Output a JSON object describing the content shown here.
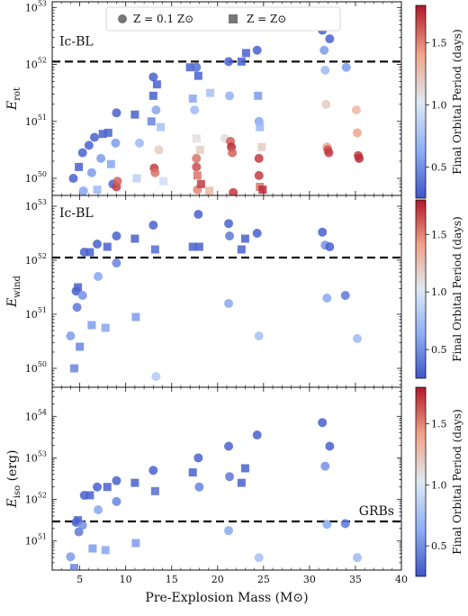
{
  "chart_data": {
    "type": "scatter",
    "xlabel": "Pre-Explosion Mass (M⊙)",
    "xlim": [
      2,
      40
    ],
    "x_ticks": [
      5,
      10,
      15,
      20,
      25,
      30,
      35,
      40
    ],
    "colors": {
      "low_period": "#3f55c8",
      "mid_period": "#dfe9f3",
      "high_period": "#b2182b",
      "dashed_line": "#111111"
    },
    "legend": {
      "placement": "top-center",
      "items": [
        {
          "label": "Z = 0.1 Z⊙",
          "marker": "circle"
        },
        {
          "label": "Z = Z⊙",
          "marker": "square"
        }
      ]
    },
    "colorbar": {
      "label": "Final Orbital Period (days)",
      "range": [
        0.25,
        1.8
      ],
      "ticks": [
        "0.5",
        "1.0",
        "1.5"
      ],
      "tick_values": [
        0.5,
        1.0,
        1.5
      ]
    },
    "panels": [
      {
        "ylabel": "E_rot",
        "ylabel_main": "E",
        "ylabel_sub": "rot",
        "log_ylim": [
          49.7,
          53.1
        ],
        "y_ticks": [
          50,
          51,
          52,
          53
        ],
        "threshold": {
          "log_value": 52.05,
          "label": "Ic-BL",
          "label_position": "top-left"
        },
        "points": [
          {
            "x": 4.3,
            "y": 50.0,
            "p": 0.3,
            "m": "circle"
          },
          {
            "x": 4.9,
            "y": 50.2,
            "p": 0.3,
            "m": "square"
          },
          {
            "x": 5.3,
            "y": 50.45,
            "p": 0.3,
            "m": "circle"
          },
          {
            "x": 5.4,
            "y": 49.78,
            "p": 0.6,
            "m": "circle"
          },
          {
            "x": 6.0,
            "y": 50.58,
            "p": 0.3,
            "m": "circle"
          },
          {
            "x": 6.3,
            "y": 50.1,
            "p": 0.55,
            "m": "circle"
          },
          {
            "x": 6.6,
            "y": 50.72,
            "p": 0.3,
            "m": "circle"
          },
          {
            "x": 6.9,
            "y": 49.8,
            "p": 0.7,
            "m": "square"
          },
          {
            "x": 7.3,
            "y": 50.35,
            "p": 0.55,
            "m": "circle"
          },
          {
            "x": 7.5,
            "y": 50.78,
            "p": 0.3,
            "m": "square"
          },
          {
            "x": 8.1,
            "y": 50.8,
            "p": 0.3,
            "m": "square"
          },
          {
            "x": 8.4,
            "y": 50.25,
            "p": 0.6,
            "m": "square"
          },
          {
            "x": 8.6,
            "y": 49.9,
            "p": 0.3,
            "m": "circle"
          },
          {
            "x": 8.9,
            "y": 50.62,
            "p": 0.55,
            "m": "circle"
          },
          {
            "x": 9.0,
            "y": 51.15,
            "p": 0.3,
            "m": "circle"
          },
          {
            "x": 9.0,
            "y": 49.85,
            "p": 1.7,
            "m": "circle"
          },
          {
            "x": 9.1,
            "y": 49.95,
            "p": 1.6,
            "m": "circle"
          },
          {
            "x": 11.0,
            "y": 51.12,
            "p": 0.3,
            "m": "square"
          },
          {
            "x": 11.2,
            "y": 50.0,
            "p": 0.85,
            "m": "square"
          },
          {
            "x": 11.5,
            "y": 50.62,
            "p": 0.7,
            "m": "circle"
          },
          {
            "x": 12.8,
            "y": 51.0,
            "p": 0.45,
            "m": "square"
          },
          {
            "x": 13.0,
            "y": 51.45,
            "p": 0.3,
            "m": "square"
          },
          {
            "x": 13.0,
            "y": 51.78,
            "p": 0.3,
            "m": "circle"
          },
          {
            "x": 13.1,
            "y": 50.18,
            "p": 1.7,
            "m": "circle"
          },
          {
            "x": 13.2,
            "y": 50.1,
            "p": 1.55,
            "m": "circle"
          },
          {
            "x": 13.3,
            "y": 51.2,
            "p": 0.6,
            "m": "circle"
          },
          {
            "x": 13.4,
            "y": 51.65,
            "p": 0.3,
            "m": "square"
          },
          {
            "x": 13.6,
            "y": 50.5,
            "p": 1.2,
            "m": "circle"
          },
          {
            "x": 13.8,
            "y": 50.9,
            "p": 0.75,
            "m": "square"
          },
          {
            "x": 14.1,
            "y": 49.95,
            "p": 0.95,
            "m": "square"
          },
          {
            "x": 17.0,
            "y": 51.95,
            "p": 0.3,
            "m": "square"
          },
          {
            "x": 17.3,
            "y": 51.4,
            "p": 0.6,
            "m": "square"
          },
          {
            "x": 17.5,
            "y": 51.2,
            "p": 0.7,
            "m": "circle"
          },
          {
            "x": 17.7,
            "y": 51.95,
            "p": 0.35,
            "m": "circle"
          },
          {
            "x": 17.7,
            "y": 50.7,
            "p": 1.1,
            "m": "square"
          },
          {
            "x": 17.7,
            "y": 50.35,
            "p": 1.55,
            "m": "circle"
          },
          {
            "x": 17.7,
            "y": 50.2,
            "p": 1.65,
            "m": "circle"
          },
          {
            "x": 17.8,
            "y": 50.05,
            "p": 1.55,
            "m": "square"
          },
          {
            "x": 17.8,
            "y": 49.8,
            "p": 1.5,
            "m": "circle"
          },
          {
            "x": 17.9,
            "y": 51.8,
            "p": 0.3,
            "m": "square"
          },
          {
            "x": 18.1,
            "y": 50.5,
            "p": 1.2,
            "m": "square"
          },
          {
            "x": 18.2,
            "y": 49.9,
            "p": 1.7,
            "m": "square"
          },
          {
            "x": 19.1,
            "y": 49.78,
            "p": 1.3,
            "m": "square"
          },
          {
            "x": 19.2,
            "y": 51.5,
            "p": 0.75,
            "m": "square"
          },
          {
            "x": 20.8,
            "y": 50.7,
            "p": 1.1,
            "m": "circle"
          },
          {
            "x": 21.2,
            "y": 52.05,
            "p": 0.3,
            "m": "circle"
          },
          {
            "x": 21.3,
            "y": 51.45,
            "p": 0.65,
            "m": "circle"
          },
          {
            "x": 21.4,
            "y": 50.65,
            "p": 1.6,
            "m": "circle"
          },
          {
            "x": 21.5,
            "y": 50.55,
            "p": 1.75,
            "m": "circle"
          },
          {
            "x": 21.6,
            "y": 50.45,
            "p": 1.6,
            "m": "circle"
          },
          {
            "x": 21.7,
            "y": 49.75,
            "p": 1.7,
            "m": "circle"
          },
          {
            "x": 22.6,
            "y": 52.05,
            "p": 0.3,
            "m": "square"
          },
          {
            "x": 23.1,
            "y": 52.2,
            "p": 0.3,
            "m": "square"
          },
          {
            "x": 24.3,
            "y": 52.25,
            "p": 0.3,
            "m": "circle"
          },
          {
            "x": 24.4,
            "y": 51.45,
            "p": 0.55,
            "m": "square"
          },
          {
            "x": 24.5,
            "y": 50.35,
            "p": 1.7,
            "m": "circle"
          },
          {
            "x": 24.5,
            "y": 50.05,
            "p": 1.7,
            "m": "circle"
          },
          {
            "x": 24.5,
            "y": 51.0,
            "p": 0.6,
            "m": "circle"
          },
          {
            "x": 24.6,
            "y": 49.85,
            "p": 1.55,
            "m": "square"
          },
          {
            "x": 24.6,
            "y": 50.9,
            "p": 0.7,
            "m": "square"
          },
          {
            "x": 24.8,
            "y": 50.55,
            "p": 1.2,
            "m": "square"
          },
          {
            "x": 24.9,
            "y": 49.8,
            "p": 1.75,
            "m": "square"
          },
          {
            "x": 31.4,
            "y": 52.6,
            "p": 0.3,
            "m": "circle"
          },
          {
            "x": 31.6,
            "y": 52.25,
            "p": 0.55,
            "m": "circle"
          },
          {
            "x": 31.7,
            "y": 51.9,
            "p": 0.7,
            "m": "circle"
          },
          {
            "x": 31.8,
            "y": 51.3,
            "p": 1.2,
            "m": "circle"
          },
          {
            "x": 31.9,
            "y": 50.55,
            "p": 1.4,
            "m": "circle"
          },
          {
            "x": 32.0,
            "y": 50.5,
            "p": 1.65,
            "m": "circle"
          },
          {
            "x": 32.1,
            "y": 50.45,
            "p": 1.7,
            "m": "circle"
          },
          {
            "x": 32.2,
            "y": 52.45,
            "p": 0.3,
            "m": "circle"
          },
          {
            "x": 34.0,
            "y": 51.95,
            "p": 0.55,
            "m": "circle"
          },
          {
            "x": 35.1,
            "y": 51.2,
            "p": 1.3,
            "m": "circle"
          },
          {
            "x": 35.2,
            "y": 50.8,
            "p": 1.4,
            "m": "circle"
          },
          {
            "x": 35.3,
            "y": 50.4,
            "p": 1.7,
            "m": "circle"
          },
          {
            "x": 35.4,
            "y": 50.35,
            "p": 1.75,
            "m": "circle"
          }
        ]
      },
      {
        "ylabel": "E_wind",
        "ylabel_main": "E",
        "ylabel_sub": "wind",
        "log_ylim": [
          49.65,
          53.2
        ],
        "y_ticks": [
          50,
          51,
          52,
          53
        ],
        "threshold": {
          "log_value": 52.05,
          "label": "Ic-BL",
          "label_position": "top-left"
        },
        "points": [
          {
            "x": 4.0,
            "y": 50.6,
            "p": 0.55,
            "m": "circle"
          },
          {
            "x": 4.4,
            "y": 50.0,
            "p": 0.45,
            "m": "square"
          },
          {
            "x": 4.6,
            "y": 51.43,
            "p": 0.3,
            "m": "circle"
          },
          {
            "x": 4.7,
            "y": 51.13,
            "p": 0.4,
            "m": "circle"
          },
          {
            "x": 4.8,
            "y": 51.5,
            "p": 0.3,
            "m": "square"
          },
          {
            "x": 5.0,
            "y": 50.4,
            "p": 0.45,
            "m": "square"
          },
          {
            "x": 5.3,
            "y": 51.35,
            "p": 0.5,
            "m": "circle"
          },
          {
            "x": 5.5,
            "y": 52.15,
            "p": 0.3,
            "m": "circle"
          },
          {
            "x": 6.1,
            "y": 52.15,
            "p": 0.3,
            "m": "square"
          },
          {
            "x": 6.3,
            "y": 50.8,
            "p": 0.55,
            "m": "square"
          },
          {
            "x": 6.9,
            "y": 52.3,
            "p": 0.3,
            "m": "circle"
          },
          {
            "x": 7.0,
            "y": 51.7,
            "p": 0.6,
            "m": "circle"
          },
          {
            "x": 7.8,
            "y": 50.75,
            "p": 0.6,
            "m": "square"
          },
          {
            "x": 8.0,
            "y": 52.25,
            "p": 0.3,
            "m": "square"
          },
          {
            "x": 9.0,
            "y": 52.45,
            "p": 0.3,
            "m": "circle"
          },
          {
            "x": 9.0,
            "y": 51.95,
            "p": 0.45,
            "m": "circle"
          },
          {
            "x": 11.0,
            "y": 52.4,
            "p": 0.3,
            "m": "square"
          },
          {
            "x": 11.1,
            "y": 50.95,
            "p": 0.55,
            "m": "square"
          },
          {
            "x": 13.0,
            "y": 52.65,
            "p": 0.3,
            "m": "circle"
          },
          {
            "x": 13.2,
            "y": 52.2,
            "p": 0.35,
            "m": "square"
          },
          {
            "x": 13.3,
            "y": 49.85,
            "p": 0.8,
            "m": "circle"
          },
          {
            "x": 17.3,
            "y": 52.25,
            "p": 0.3,
            "m": "square"
          },
          {
            "x": 17.9,
            "y": 52.85,
            "p": 0.3,
            "m": "circle"
          },
          {
            "x": 18.0,
            "y": 52.25,
            "p": 0.3,
            "m": "square"
          },
          {
            "x": 21.2,
            "y": 52.68,
            "p": 0.3,
            "m": "circle"
          },
          {
            "x": 21.3,
            "y": 52.45,
            "p": 0.4,
            "m": "circle"
          },
          {
            "x": 21.2,
            "y": 51.2,
            "p": 0.6,
            "m": "circle"
          },
          {
            "x": 22.6,
            "y": 52.2,
            "p": 0.3,
            "m": "square"
          },
          {
            "x": 23.0,
            "y": 52.4,
            "p": 0.3,
            "m": "square"
          },
          {
            "x": 24.3,
            "y": 52.5,
            "p": 0.3,
            "m": "circle"
          },
          {
            "x": 24.5,
            "y": 50.6,
            "p": 0.75,
            "m": "circle"
          },
          {
            "x": 31.4,
            "y": 52.52,
            "p": 0.3,
            "m": "circle"
          },
          {
            "x": 31.7,
            "y": 52.28,
            "p": 0.5,
            "m": "circle"
          },
          {
            "x": 32.2,
            "y": 52.25,
            "p": 0.3,
            "m": "circle"
          },
          {
            "x": 31.9,
            "y": 51.3,
            "p": 0.6,
            "m": "circle"
          },
          {
            "x": 33.9,
            "y": 51.35,
            "p": 0.4,
            "m": "circle"
          },
          {
            "x": 35.2,
            "y": 50.55,
            "p": 0.7,
            "m": "circle"
          }
        ]
      },
      {
        "ylabel": "E_iso (erg)",
        "ylabel_main": "E",
        "ylabel_sub": "iso",
        "ylabel_suffix": " (erg)",
        "log_ylim": [
          50.3,
          54.7
        ],
        "y_ticks": [
          51,
          52,
          53,
          54
        ],
        "threshold": {
          "log_value": 51.47,
          "label": "GRBs",
          "label_position": "bottom-right"
        },
        "points": [
          {
            "x": 4.0,
            "y": 50.62,
            "p": 0.55,
            "m": "circle"
          },
          {
            "x": 4.4,
            "y": 50.35,
            "p": 0.45,
            "m": "square"
          },
          {
            "x": 4.6,
            "y": 51.45,
            "p": 0.3,
            "m": "circle"
          },
          {
            "x": 4.8,
            "y": 51.5,
            "p": 0.3,
            "m": "square"
          },
          {
            "x": 4.9,
            "y": 51.22,
            "p": 0.4,
            "m": "circle"
          },
          {
            "x": 5.3,
            "y": 51.38,
            "p": 0.5,
            "m": "circle"
          },
          {
            "x": 5.5,
            "y": 52.1,
            "p": 0.3,
            "m": "circle"
          },
          {
            "x": 6.1,
            "y": 52.1,
            "p": 0.3,
            "m": "square"
          },
          {
            "x": 6.4,
            "y": 50.82,
            "p": 0.55,
            "m": "square"
          },
          {
            "x": 6.9,
            "y": 52.3,
            "p": 0.3,
            "m": "circle"
          },
          {
            "x": 7.0,
            "y": 51.75,
            "p": 0.6,
            "m": "circle"
          },
          {
            "x": 7.8,
            "y": 50.78,
            "p": 0.6,
            "m": "square"
          },
          {
            "x": 8.0,
            "y": 52.3,
            "p": 0.3,
            "m": "square"
          },
          {
            "x": 9.0,
            "y": 52.45,
            "p": 0.3,
            "m": "circle"
          },
          {
            "x": 9.0,
            "y": 51.95,
            "p": 0.45,
            "m": "circle"
          },
          {
            "x": 11.0,
            "y": 52.4,
            "p": 0.3,
            "m": "square"
          },
          {
            "x": 11.1,
            "y": 50.95,
            "p": 0.55,
            "m": "square"
          },
          {
            "x": 13.0,
            "y": 52.7,
            "p": 0.3,
            "m": "circle"
          },
          {
            "x": 13.2,
            "y": 52.2,
            "p": 0.35,
            "m": "square"
          },
          {
            "x": 17.3,
            "y": 52.65,
            "p": 0.3,
            "m": "square"
          },
          {
            "x": 17.9,
            "y": 53.0,
            "p": 0.3,
            "m": "circle"
          },
          {
            "x": 18.0,
            "y": 52.3,
            "p": 0.45,
            "m": "circle"
          },
          {
            "x": 21.2,
            "y": 53.28,
            "p": 0.3,
            "m": "circle"
          },
          {
            "x": 21.3,
            "y": 52.55,
            "p": 0.4,
            "m": "circle"
          },
          {
            "x": 21.2,
            "y": 51.25,
            "p": 0.6,
            "m": "circle"
          },
          {
            "x": 22.6,
            "y": 52.4,
            "p": 0.3,
            "m": "square"
          },
          {
            "x": 23.0,
            "y": 52.75,
            "p": 0.3,
            "m": "square"
          },
          {
            "x": 24.3,
            "y": 53.55,
            "p": 0.3,
            "m": "circle"
          },
          {
            "x": 24.5,
            "y": 50.6,
            "p": 0.75,
            "m": "circle"
          },
          {
            "x": 31.4,
            "y": 53.85,
            "p": 0.3,
            "m": "circle"
          },
          {
            "x": 31.7,
            "y": 52.8,
            "p": 0.5,
            "m": "circle"
          },
          {
            "x": 32.2,
            "y": 53.28,
            "p": 0.3,
            "m": "circle"
          },
          {
            "x": 31.9,
            "y": 51.4,
            "p": 0.6,
            "m": "circle"
          },
          {
            "x": 33.9,
            "y": 51.42,
            "p": 0.4,
            "m": "circle"
          },
          {
            "x": 35.2,
            "y": 50.6,
            "p": 0.7,
            "m": "circle"
          }
        ]
      }
    ]
  }
}
